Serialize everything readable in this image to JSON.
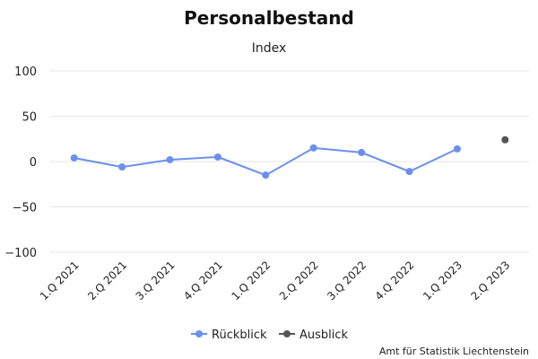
{
  "chart_data": {
    "type": "line",
    "title": "Personalbestand",
    "subtitle": "Index",
    "categories": [
      "1.Q 2021",
      "2.Q 2021",
      "3.Q 2021",
      "4.Q 2021",
      "1.Q 2022",
      "2.Q 2022",
      "3.Q 2022",
      "4.Q 2022",
      "1.Q 2023",
      "2.Q 2023"
    ],
    "yticks": [
      100,
      50,
      0,
      -50,
      -100
    ],
    "ylim": [
      -100,
      100
    ],
    "grid": true,
    "legend_position": "bottom-center",
    "series": [
      {
        "name": "Rückblick",
        "color": "#6b8ff0",
        "values": [
          4,
          -6,
          2,
          5,
          -15,
          15,
          10,
          -11,
          14,
          null
        ]
      },
      {
        "name": "Ausblick",
        "color": "#555555",
        "values": [
          null,
          null,
          null,
          null,
          null,
          null,
          null,
          null,
          null,
          24
        ]
      }
    ],
    "credit": "Amt für Statistik Liechtenstein"
  }
}
